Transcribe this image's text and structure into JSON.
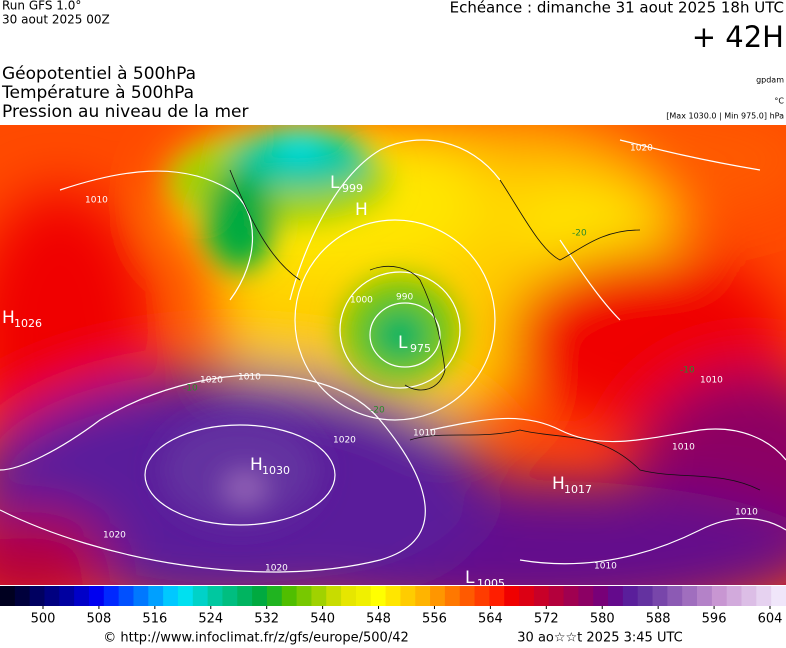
{
  "header": {
    "run": "Run GFS 1.0°",
    "date": "30 aout 2025 00Z",
    "echeance": "Echéance : dimanche 31 aout 2025 18h UTC",
    "lead": "+ 42H"
  },
  "titles": [
    "Géopotentiel à 500hPa",
    "Température à 500hPa",
    "Pression au niveau de la mer"
  ],
  "units": [
    "gpdam",
    "°C",
    "[Max 1030.0 | Min 975.0] hPa"
  ],
  "map": {
    "centers": [
      {
        "letter": "H",
        "value": "1026"
      },
      {
        "letter": "L",
        "value": "999"
      },
      {
        "letter": "H",
        "value": ""
      },
      {
        "letter": "L",
        "value": "975"
      },
      {
        "letter": "H",
        "value": "1030"
      },
      {
        "letter": "H",
        "value": "1017"
      },
      {
        "letter": "L",
        "value": "1005"
      }
    ],
    "contour_labels": [
      "1010",
      "1000",
      "990",
      "1010",
      "1020",
      "1020",
      "1010",
      "1020",
      "1020",
      "1010",
      "1010",
      "1020",
      "1010",
      "1010"
    ],
    "temperature_labels": [
      "-20",
      "-20",
      "-10",
      "-10"
    ]
  },
  "colorbar": {
    "ticks": [
      500,
      508,
      516,
      524,
      532,
      540,
      548,
      556,
      564,
      572,
      580,
      588,
      596,
      604
    ],
    "colors": [
      "#000020",
      "#00003c",
      "#000060",
      "#000080",
      "#0000a0",
      "#0000c8",
      "#0000f0",
      "#0028ff",
      "#0050ff",
      "#0078ff",
      "#00a0ff",
      "#00c8ff",
      "#00e0f0",
      "#00d2c8",
      "#00c8a0",
      "#00be80",
      "#00b460",
      "#00aa40",
      "#20b420",
      "#50be00",
      "#78c800",
      "#a0d200",
      "#c8dc00",
      "#e6e600",
      "#f0f000",
      "#ffff00",
      "#ffe600",
      "#ffcc00",
      "#ffb400",
      "#ff9600",
      "#ff7800",
      "#ff5a00",
      "#ff3c00",
      "#ff1e00",
      "#f00000",
      "#dc0014",
      "#c80028",
      "#b4003c",
      "#a00050",
      "#8c0064",
      "#780078",
      "#640a8c",
      "#5a1e9b",
      "#6432a0",
      "#7846aa",
      "#8c5ab4",
      "#a06ebe",
      "#b482c8",
      "#c896d2",
      "#d2aadc",
      "#dcbee6",
      "#e6d2f0",
      "#f0e6fa"
    ]
  },
  "footer": {
    "source": "© http://www.infoclimat.fr/z/gfs/europe/500/42",
    "generated": "30 ao☆☆t 2025  3:45 UTC"
  }
}
